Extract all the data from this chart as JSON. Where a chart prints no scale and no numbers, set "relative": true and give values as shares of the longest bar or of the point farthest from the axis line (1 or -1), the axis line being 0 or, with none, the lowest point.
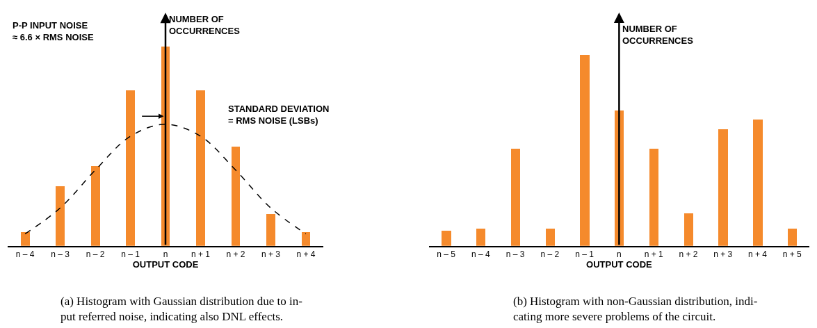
{
  "chart_data": [
    {
      "type": "bar",
      "relative": true,
      "xlabel": "OUTPUT CODE",
      "ylabel": "NUMBER OF\nOCCURRENCES",
      "categories": [
        "n – 4",
        "n – 3",
        "n – 2",
        "n – 1",
        "n",
        "n + 1",
        "n + 2",
        "n + 3",
        "n + 4"
      ],
      "series": [
        {
          "color": "#f58a2c",
          "values": [
            0.07,
            0.3,
            0.4,
            0.78,
            1,
            0.78,
            0.5,
            0.16,
            0.07
          ]
        },
        {
          "type": "line",
          "color": "#000000",
          "line_style": "dashed",
          "marker": "none",
          "values": [
            0.06,
            0.19,
            0.38,
            0.55,
            0.61,
            0.55,
            0.38,
            0.19,
            0.06
          ]
        }
      ],
      "annotations": [
        "P-P INPUT NOISE\n≈ 6.6 × RMS NOISE",
        "STANDARD DEVIATION\n= RMS NOISE (LSBs)",
        "(a) Histogram with Gaussian distribution due to in-\nput referred noise, indicating also DNL effects."
      ]
    },
    {
      "type": "bar",
      "relative": true,
      "xlabel": "OUTPUT CODE",
      "ylabel": "NUMBER OF\nOCCURRENCES",
      "categories": [
        "n – 5",
        "n – 4",
        "n – 3",
        "n – 2",
        "n – 1",
        "n",
        "n + 1",
        "n + 2",
        "n + 3",
        "n + 4",
        "n + 5"
      ],
      "series": [
        {
          "color": "#f58a2c",
          "values": [
            0.08,
            0.09,
            0.51,
            0.09,
            1,
            0.71,
            0.51,
            0.17,
            0.61,
            0.66,
            0.09
          ]
        }
      ],
      "annotations": [
        "(b) Histogram with non-Gaussian distribution, indi-\ncating more severe problems of the circuit."
      ]
    }
  ]
}
